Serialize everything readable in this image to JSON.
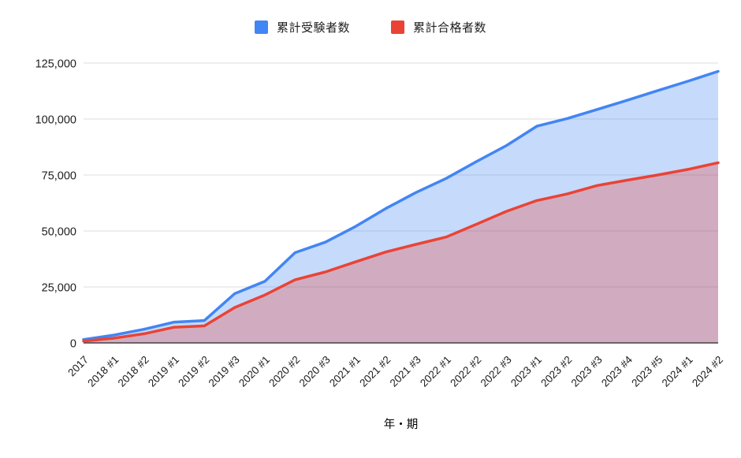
{
  "chart_data": {
    "type": "area",
    "title": "",
    "xlabel": "年・期",
    "ylabel": "",
    "categories": [
      "2017",
      "2018 #1",
      "2018 #2",
      "2019 #1",
      "2019 #2",
      "2019 #3",
      "2020 #1",
      "2020 #2",
      "2020 #3",
      "2021 #1",
      "2021 #2",
      "2021 #3",
      "2022 #1",
      "2022 #2",
      "2022 #3",
      "2023 #1",
      "2023 #2",
      "2023 #3",
      "2023 #4",
      "2023 #5",
      "2024 #1",
      "2024 #2"
    ],
    "series": [
      {
        "name": "累計受験者数",
        "color": "#4285F4",
        "fill_opacity": 0.3,
        "values": [
          1500,
          3500,
          6100,
          9300,
          10000,
          22000,
          27500,
          40300,
          45000,
          52000,
          60000,
          67200,
          73500,
          81000,
          88200,
          96800,
          100200,
          104300,
          108400,
          112700,
          116900,
          121300
        ]
      },
      {
        "name": "累計合格者数",
        "color": "#EA4335",
        "fill_opacity": 0.3,
        "values": [
          800,
          2100,
          4100,
          7000,
          7600,
          15800,
          21400,
          28200,
          31700,
          36200,
          40600,
          44000,
          47300,
          53000,
          58800,
          63600,
          66500,
          70300,
          72700,
          75000,
          77500,
          80500
        ]
      }
    ],
    "ylim": [
      0,
      125000
    ],
    "ytick_step": 25000,
    "ytick_labels": [
      "0",
      "25,000",
      "50,000",
      "75,000",
      "100,000",
      "125,000"
    ],
    "grid": true,
    "legend_position": "top",
    "x_label_rotation_deg": 45,
    "colors": {
      "gridline": "#e3e3e3",
      "axis_line": "#424242",
      "ytick_text": "#202124",
      "xtick_text": "#1a1a1a",
      "axis_title_text": "#000000"
    }
  }
}
